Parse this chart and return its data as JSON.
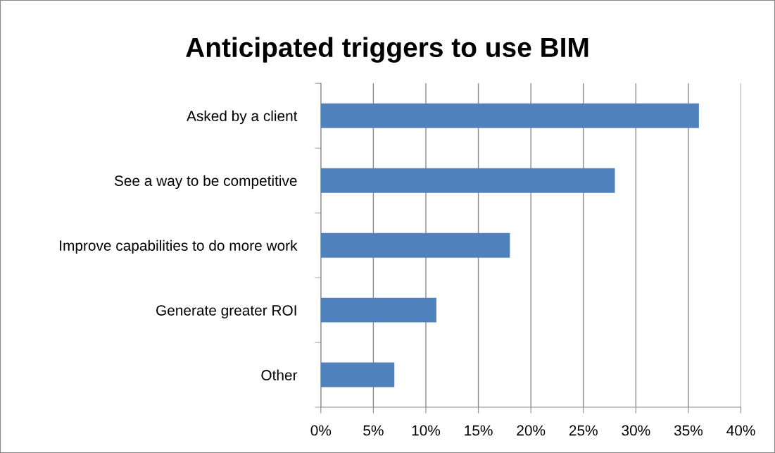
{
  "chart_data": {
    "type": "bar",
    "orientation": "horizontal",
    "title": "Anticipated triggers to use BIM",
    "categories": [
      "Asked by a client",
      "See a way to be competitive",
      "Improve capabilities to do more work",
      "Generate greater ROI",
      "Other"
    ],
    "values": [
      36,
      28,
      18,
      11,
      7
    ],
    "color": "#4f81bd",
    "xlim": [
      0,
      40
    ],
    "xticks": [
      {
        "value": 0,
        "label": "0%"
      },
      {
        "value": 5,
        "label": "5%"
      },
      {
        "value": 10,
        "label": "10%"
      },
      {
        "value": 15,
        "label": "15%"
      },
      {
        "value": 20,
        "label": "20%"
      },
      {
        "value": 25,
        "label": "25%"
      },
      {
        "value": 30,
        "label": "30%"
      },
      {
        "value": 35,
        "label": "35%"
      },
      {
        "value": 40,
        "label": "40%"
      }
    ],
    "grid": "x",
    "legend": false
  }
}
